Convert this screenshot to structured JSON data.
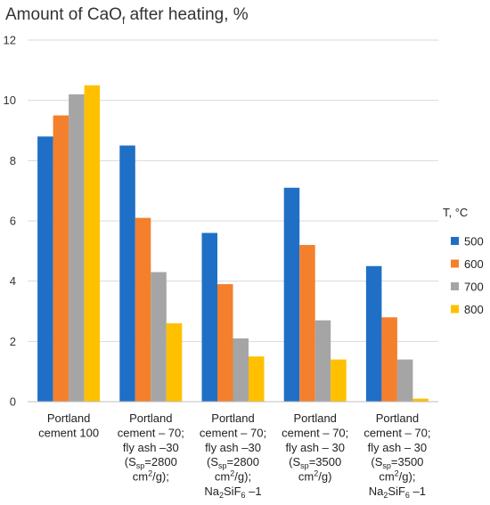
{
  "chart_data": {
    "type": "bar",
    "title": "Amount of CaO",
    "title_sub": "f",
    "title_tail": " after heating, %",
    "ylim": [
      0,
      12
    ],
    "y_ticks": [
      "0",
      "2",
      "4",
      "6",
      "8",
      "10",
      "12"
    ],
    "grid": true,
    "legend_title": "T, °C",
    "legend_position": "right",
    "categories": [
      [
        [
          "Portland"
        ],
        [
          "cement 100"
        ]
      ],
      [
        [
          "Portland"
        ],
        [
          "cement – 70;"
        ],
        [
          "fly ash –30"
        ],
        [
          "(S",
          "sp",
          "=2800"
        ],
        [
          "cm",
          "2",
          "/g);"
        ]
      ],
      [
        [
          "Portland"
        ],
        [
          "cement – 70;"
        ],
        [
          "fly ash –30"
        ],
        [
          "(S",
          "sp",
          "=2800"
        ],
        [
          "cm",
          "2",
          "/g);"
        ],
        [
          "Na",
          "2",
          "SiF",
          "6",
          "  –1"
        ]
      ],
      [
        [
          "Portland"
        ],
        [
          "cement – 70;"
        ],
        [
          "fly ash – 30"
        ],
        [
          "(S",
          "sp",
          "=3500"
        ],
        [
          "cm",
          "2",
          "/g)"
        ]
      ],
      [
        [
          "Portland"
        ],
        [
          "cement – 70;"
        ],
        [
          "fly ash – 30"
        ],
        [
          "(S",
          "sp",
          "=3500"
        ],
        [
          "cm",
          "2",
          "/g);"
        ],
        [
          "Na",
          "2",
          "SiF",
          "6",
          "  –1"
        ]
      ]
    ],
    "series": [
      {
        "name": "500",
        "color": "#1f6fc6",
        "values": [
          8.8,
          8.5,
          5.6,
          7.1,
          4.5
        ]
      },
      {
        "name": "600",
        "color": "#f47f2c",
        "values": [
          9.5,
          6.1,
          3.9,
          5.2,
          2.8
        ]
      },
      {
        "name": "700",
        "color": "#a5a5a5",
        "values": [
          10.2,
          4.3,
          2.1,
          2.7,
          1.4
        ]
      },
      {
        "name": "800",
        "color": "#ffc000",
        "values": [
          10.5,
          2.6,
          1.5,
          1.4,
          0.1
        ]
      }
    ]
  }
}
